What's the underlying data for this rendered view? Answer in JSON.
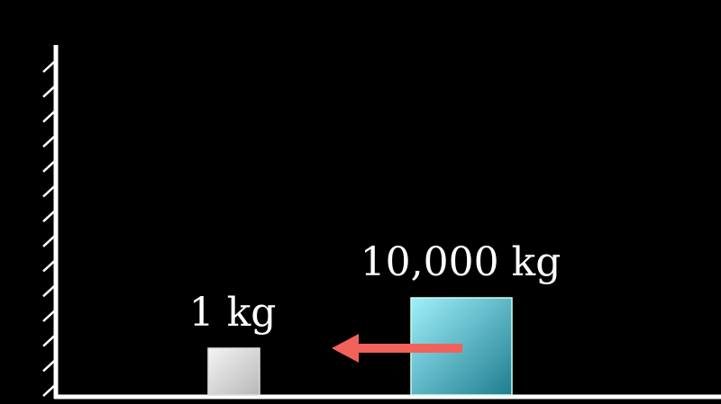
{
  "small_block": {
    "label": "1 kg",
    "mass_kg": 1
  },
  "large_block": {
    "label": "10,000 kg",
    "mass_kg": 10000
  },
  "arrow": {
    "direction": "left",
    "color": "#f0625a"
  },
  "colors": {
    "background": "#000000",
    "wall_floor": "#ffffff",
    "small_block_light": "#f4f4f4",
    "small_block_dark": "#b8b8b8",
    "large_block_light": "#9ff0fb",
    "large_block_dark": "#1f7d8f"
  }
}
